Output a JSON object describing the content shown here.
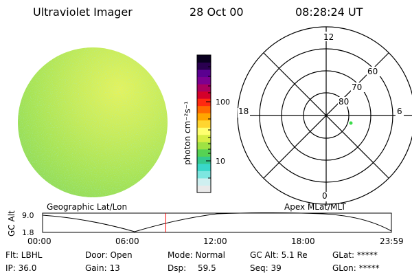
{
  "header": {
    "instrument": "Ultraviolet Imager",
    "date": "28 Oct 00",
    "time": "08:28:24 UT"
  },
  "colorbar": {
    "unit_label": "photon cm⁻²s⁻¹",
    "ticks": [
      "100",
      "10"
    ],
    "colors": [
      "#e9e9e9",
      "#cfeff0",
      "#7de6e0",
      "#3ad7c9",
      "#34c98f",
      "#56d253",
      "#9fe243",
      "#d8ee45",
      "#ffff70",
      "#ffd530",
      "#ffa600",
      "#ff6a00",
      "#ff2a10",
      "#d4002a",
      "#aa0060",
      "#7d0090",
      "#5a0090",
      "#2a0050",
      "#0a0020"
    ]
  },
  "polar_plot": {
    "hour_labels": [
      "12",
      "18",
      "6",
      "0"
    ],
    "lat_labels": [
      "60",
      "70",
      "80"
    ],
    "marker_color": "#3ddc4c"
  },
  "image_disk": {
    "colors": {
      "base": "#b9e85a",
      "bright": "#dff25c",
      "green": "#86d94e",
      "cyan": "#5fd3b4"
    }
  },
  "timeline": {
    "left_title": "Geographic Lat/Lon",
    "right_title": "Apex MLat/MLT",
    "ylabel": "GC Alt",
    "yticks": [
      "9.0",
      "1.8"
    ],
    "xticks": [
      "00:00",
      "06:00",
      "12:00",
      "18:00",
      "23:59"
    ],
    "current_time_hours": 8.47,
    "marker_color": "#ff0000"
  },
  "info": {
    "flt": "Flt: LBHL",
    "ip": "IP: 36.0",
    "door": "Door: Open",
    "gain": "Gain: 13",
    "mode": "Mode: Normal",
    "dsp_label": "Dsp:",
    "dsp_value": "59.5",
    "gc_alt": "GC Alt: 5.1 Re",
    "seq": "Seq: 39",
    "glat": "GLat: *****",
    "glon": "GLon: *****"
  }
}
